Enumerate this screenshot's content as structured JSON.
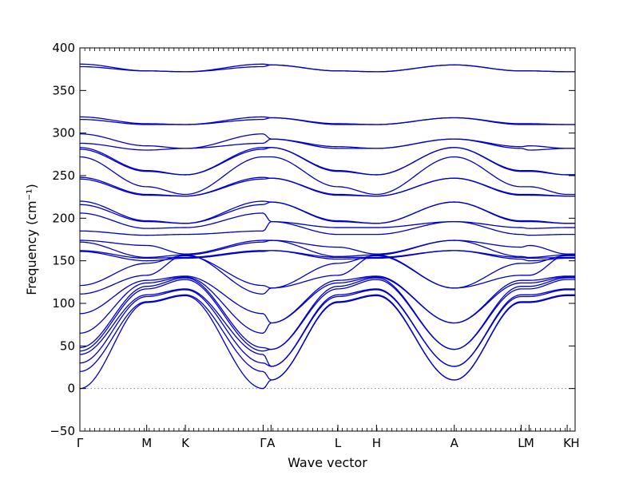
{
  "chart_data": {
    "type": "line",
    "title": "",
    "xlabel": "Wave vector",
    "ylabel": "Frequency (cm⁻¹)",
    "ylim": [
      -50,
      400
    ],
    "yticks": [
      -50,
      0,
      50,
      100,
      150,
      200,
      250,
      300,
      350,
      400
    ],
    "x_range": [
      0,
      1
    ],
    "grid": false,
    "line_color": "#0000cc",
    "zero_line_color": "#888888",
    "high_symmetry_points": [
      {
        "label": "Γ",
        "x": 0.0
      },
      {
        "label": "M",
        "x": 0.135
      },
      {
        "label": "K",
        "x": 0.213
      },
      {
        "label": "Γ",
        "x": 0.37
      },
      {
        "label": "A",
        "x": 0.386
      },
      {
        "label": "L",
        "x": 0.521
      },
      {
        "label": "H",
        "x": 0.599
      },
      {
        "label": "A",
        "x": 0.756
      },
      {
        "label": "L",
        "x": 0.891
      },
      {
        "label": "M",
        "x": 0.907
      },
      {
        "label": "K",
        "x": 0.984
      },
      {
        "label": "H",
        "x": 1.0
      }
    ],
    "series": [
      {
        "y": [
          381,
          373,
          372,
          381,
          380,
          373,
          372,
          380,
          373,
          373,
          372,
          372
        ]
      },
      {
        "y": [
          378,
          373,
          372,
          378,
          380,
          373,
          372,
          380,
          373,
          373,
          372,
          372
        ]
      },
      {
        "y": [
          319,
          311,
          310,
          319,
          318,
          311,
          310,
          318,
          311,
          311,
          310,
          310
        ]
      },
      {
        "y": [
          316,
          310,
          310,
          316,
          318,
          310,
          310,
          318,
          310,
          310,
          310,
          310
        ]
      },
      {
        "y": [
          299,
          285,
          282,
          299,
          293,
          284,
          282,
          293,
          284,
          285,
          282,
          282
        ]
      },
      {
        "y": [
          288,
          280,
          282,
          288,
          293,
          282,
          282,
          293,
          282,
          280,
          282,
          282
        ]
      },
      {
        "y": [
          283,
          256,
          251,
          283,
          283,
          256,
          251,
          283,
          256,
          256,
          251,
          251
        ]
      },
      {
        "y": [
          281,
          255,
          251,
          281,
          283,
          255,
          251,
          283,
          255,
          255,
          251,
          251
        ]
      },
      {
        "y": [
          272,
          237,
          228,
          272,
          272,
          237,
          228,
          272,
          237,
          237,
          228,
          228
        ]
      },
      {
        "y": [
          248,
          228,
          226,
          248,
          247,
          228,
          226,
          247,
          228,
          228,
          226,
          226
        ]
      },
      {
        "y": [
          246,
          227,
          226,
          246,
          247,
          227,
          226,
          247,
          227,
          227,
          226,
          226
        ]
      },
      {
        "y": [
          220,
          197,
          194,
          220,
          219,
          197,
          194,
          219,
          197,
          197,
          194,
          194
        ]
      },
      {
        "y": [
          216,
          196,
          194,
          216,
          219,
          196,
          194,
          219,
          196,
          196,
          194,
          194
        ]
      },
      {
        "y": [
          206,
          188,
          189,
          206,
          196,
          189,
          189,
          196,
          189,
          188,
          189,
          189
        ]
      },
      {
        "y": [
          185,
          180,
          181,
          185,
          196,
          181,
          181,
          196,
          181,
          180,
          181,
          181
        ]
      },
      {
        "y": [
          174,
          168,
          158,
          174,
          174,
          166,
          158,
          174,
          166,
          168,
          158,
          158
        ]
      },
      {
        "y": [
          172,
          154,
          157,
          172,
          174,
          155,
          157,
          174,
          155,
          154,
          157,
          157
        ]
      },
      {
        "y": [
          162,
          153,
          154,
          162,
          162,
          154,
          154,
          162,
          154,
          153,
          154,
          154
        ]
      },
      {
        "y": [
          161,
          150,
          153,
          161,
          162,
          152,
          153,
          162,
          152,
          150,
          153,
          153
        ]
      },
      {
        "y": [
          121,
          147,
          156,
          121,
          118,
          147,
          156,
          118,
          147,
          147,
          156,
          156
        ]
      },
      {
        "y": [
          111,
          133,
          157,
          111,
          118,
          133,
          157,
          118,
          133,
          133,
          157,
          157
        ]
      },
      {
        "y": [
          88,
          127,
          132,
          88,
          77,
          127,
          132,
          77,
          127,
          127,
          132,
          132
        ]
      },
      {
        "y": [
          65,
          124,
          131,
          65,
          77,
          124,
          131,
          77,
          124,
          124,
          131,
          131
        ]
      },
      {
        "y": [
          48,
          120,
          130,
          48,
          46,
          120,
          130,
          46,
          120,
          120,
          130,
          130
        ]
      },
      {
        "y": [
          44,
          117,
          128,
          44,
          46,
          117,
          128,
          46,
          117,
          117,
          128,
          128
        ]
      },
      {
        "y": [
          40,
          110,
          117,
          40,
          26,
          110,
          117,
          26,
          110,
          110,
          117,
          117
        ]
      },
      {
        "y": [
          30,
          108,
          116,
          30,
          26,
          108,
          116,
          26,
          108,
          108,
          116,
          116
        ]
      },
      {
        "y": [
          20,
          102,
          110,
          20,
          10,
          102,
          110,
          10,
          102,
          102,
          110,
          110
        ]
      },
      {
        "y": [
          0,
          101,
          109,
          0,
          10,
          101,
          109,
          10,
          101,
          101,
          109,
          109
        ]
      }
    ]
  }
}
